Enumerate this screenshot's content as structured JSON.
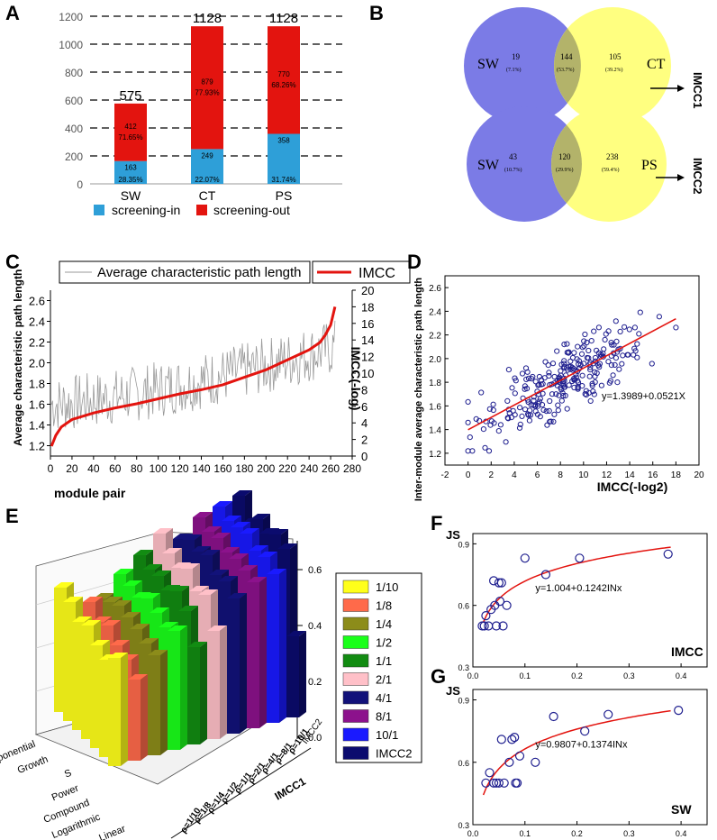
{
  "chart_data": [
    {
      "panel": "A",
      "type": "bar",
      "stacked": true,
      "categories": [
        "SW",
        "CT",
        "PS"
      ],
      "totals": [
        "575",
        "1128",
        "1128"
      ],
      "ylim": [
        0,
        1200
      ],
      "yticks": [
        "0",
        "200",
        "400",
        "600",
        "800",
        "1000",
        "1200"
      ],
      "series": [
        {
          "name": "screening-in",
          "color": "#2e9fd8",
          "values": [
            163,
            249,
            358
          ],
          "value_labels": [
            "163",
            "249",
            "358"
          ],
          "percent_labels": [
            "28.35%",
            "22.07%",
            "31.74%"
          ]
        },
        {
          "name": "screening-out",
          "color": "#e3140f",
          "values": [
            412,
            879,
            770
          ],
          "value_labels": [
            "412",
            "879",
            "770"
          ],
          "percent_labels": [
            "71.65%",
            "77.93%",
            "68.26%"
          ]
        }
      ],
      "legend": [
        "screening-in",
        "screening-out"
      ]
    },
    {
      "panel": "B",
      "type": "venn",
      "diagrams": [
        {
          "left": "SW",
          "right": "CT",
          "left_only": "19",
          "left_pct": "(7.1%)",
          "both": "144",
          "both_pct": "(53.7%)",
          "right_only": "105",
          "right_pct": "(39.2%)",
          "result": "IMCC1"
        },
        {
          "left": "SW",
          "right": "PS",
          "left_only": "43",
          "left_pct": "(10.7%)",
          "both": "120",
          "both_pct": "(29.9%)",
          "right_only": "238",
          "right_pct": "(59.4%)",
          "result": "IMCC2"
        }
      ]
    },
    {
      "panel": "C",
      "type": "line",
      "legend": [
        "Average characteristic path length",
        "IMCC"
      ],
      "xlabel": "module pair",
      "ylabel": "Average characteristic path length",
      "ylabel_right": "IMCC(-log)",
      "xlim": [
        0,
        280
      ],
      "ylim": [
        1.1,
        2.7
      ],
      "ylim_right": [
        0,
        20
      ],
      "xticks": [
        "0",
        "20",
        "40",
        "60",
        "80",
        "100",
        "120",
        "140",
        "160",
        "180",
        "200",
        "220",
        "240",
        "260",
        "280"
      ],
      "yticks": [
        "1.2",
        "1.4",
        "1.6",
        "1.8",
        "2.0",
        "2.2",
        "2.4",
        "2.6"
      ],
      "yticks_right": [
        "0",
        "2",
        "4",
        "6",
        "8",
        "10",
        "12",
        "14",
        "16",
        "18",
        "20"
      ],
      "imcc_curve": {
        "x": [
          1,
          5,
          10,
          20,
          40,
          60,
          80,
          100,
          120,
          140,
          160,
          180,
          200,
          220,
          240,
          250,
          255,
          260,
          264
        ],
        "y": [
          1.2,
          2.5,
          3.5,
          4.4,
          5.2,
          5.8,
          6.3,
          6.9,
          7.5,
          8.0,
          8.6,
          9.5,
          10.4,
          11.6,
          12.8,
          13.7,
          14.6,
          15.8,
          18.0
        ]
      }
    },
    {
      "panel": "D",
      "type": "scatter",
      "xlabel": "IMCC(-log2)",
      "ylabel": "Inter-module average characteristic path length",
      "xlim": [
        -2,
        20
      ],
      "ylim": [
        1.1,
        2.7
      ],
      "xticks": [
        "-2",
        "0",
        "2",
        "4",
        "6",
        "8",
        "10",
        "12",
        "14",
        "16",
        "18",
        "20"
      ],
      "yticks": [
        "1.2",
        "1.4",
        "1.6",
        "1.8",
        "2.0",
        "2.2",
        "2.4",
        "2.6"
      ],
      "fit_label": "y=1.3989+0.0521X",
      "fit": {
        "intercept": 1.3989,
        "slope": 0.0521,
        "xrange": [
          0,
          18
        ]
      }
    },
    {
      "panel": "E",
      "type": "bar3d",
      "zticks": [
        "0.0",
        "0.2",
        "0.4",
        "0.6"
      ],
      "model_labels": [
        "Exponential",
        "Growth",
        "S",
        "Power",
        "Compound",
        "Logarithmic",
        "Linear"
      ],
      "ratio_labels": [
        "ρ=1/10",
        "ρ=1/8",
        "ρ=1/4",
        "ρ=1/2",
        "ρ=1/1",
        "ρ=2/1",
        "ρ=4/1",
        "ρ=8/1",
        "ρ=10/1",
        "IMCC2"
      ],
      "group_label": "IMCC1",
      "legend": [
        {
          "label": "1/10",
          "color": "#ffff1a"
        },
        {
          "label": "1/8",
          "color": "#ff6a4a"
        },
        {
          "label": "1/4",
          "color": "#8c8c1a"
        },
        {
          "label": "1/2",
          "color": "#1aff1a"
        },
        {
          "label": "1/1",
          "color": "#128c12"
        },
        {
          "label": "2/1",
          "color": "#ffc0c8"
        },
        {
          "label": "4/1",
          "color": "#12127a"
        },
        {
          "label": "8/1",
          "color": "#8c128c"
        },
        {
          "label": "10/1",
          "color": "#1a1aff"
        },
        {
          "label": "IMCC2",
          "color": "#0b0b6e"
        }
      ]
    },
    {
      "panel": "F",
      "type": "scatter",
      "ylabel": "JS",
      "xlim": [
        0,
        0.45
      ],
      "ylim": [
        0.3,
        0.95
      ],
      "xticks": [
        "0.0",
        "0.1",
        "0.2",
        "0.3",
        "0.4"
      ],
      "yticks": [
        "0.3",
        "0.6",
        "0.9"
      ],
      "fit_label": "y=1.004+0.1242INx",
      "corner_label": "IMCC",
      "fit": {
        "a": 1.004,
        "b": 0.1242
      },
      "points": [
        [
          0.018,
          0.5
        ],
        [
          0.022,
          0.5
        ],
        [
          0.025,
          0.55
        ],
        [
          0.03,
          0.5
        ],
        [
          0.035,
          0.58
        ],
        [
          0.04,
          0.72
        ],
        [
          0.042,
          0.6
        ],
        [
          0.045,
          0.5
        ],
        [
          0.05,
          0.71
        ],
        [
          0.052,
          0.62
        ],
        [
          0.055,
          0.71
        ],
        [
          0.058,
          0.5
        ],
        [
          0.065,
          0.6
        ],
        [
          0.1,
          0.83
        ],
        [
          0.14,
          0.75
        ],
        [
          0.205,
          0.83
        ],
        [
          0.375,
          0.85
        ]
      ]
    },
    {
      "panel": "G",
      "type": "scatter",
      "ylabel": "JS",
      "xlim": [
        0,
        0.45
      ],
      "ylim": [
        0.3,
        0.95
      ],
      "xticks": [
        "0.0",
        "0.1",
        "0.2",
        "0.3",
        "0.4"
      ],
      "yticks": [
        "0.3",
        "0.6",
        "0.9"
      ],
      "fit_label": "y=0.9807+0.1374INx",
      "corner_label": "SW",
      "fit": {
        "a": 0.9807,
        "b": 0.1374
      },
      "points": [
        [
          0.025,
          0.5
        ],
        [
          0.032,
          0.55
        ],
        [
          0.04,
          0.5
        ],
        [
          0.045,
          0.5
        ],
        [
          0.05,
          0.5
        ],
        [
          0.055,
          0.71
        ],
        [
          0.06,
          0.5
        ],
        [
          0.07,
          0.6
        ],
        [
          0.075,
          0.71
        ],
        [
          0.08,
          0.72
        ],
        [
          0.082,
          0.5
        ],
        [
          0.085,
          0.5
        ],
        [
          0.09,
          0.63
        ],
        [
          0.12,
          0.6
        ],
        [
          0.155,
          0.82
        ],
        [
          0.215,
          0.75
        ],
        [
          0.26,
          0.83
        ],
        [
          0.395,
          0.85
        ]
      ]
    }
  ],
  "panel_labels": [
    "A",
    "B",
    "C",
    "D",
    "E",
    "F",
    "G"
  ]
}
